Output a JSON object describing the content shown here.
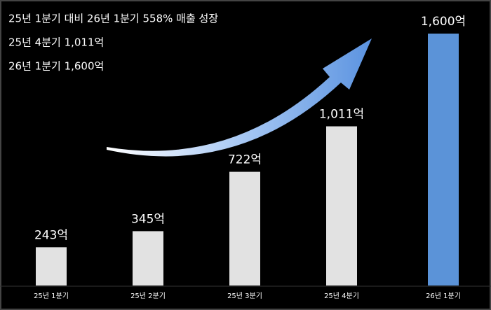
{
  "chart_data": {
    "type": "bar",
    "annotations": [
      "25년 1분기 대비 26년 1분기 558% 매출 성장",
      "25년 4분기 1,011억",
      "26년 1분기 1,600억"
    ],
    "categories": [
      "25년 1분기",
      "25년 2분기",
      "25년 3분기",
      "25년 4분기",
      "26년 1분기"
    ],
    "values": [
      243,
      345,
      722,
      1011,
      1600
    ],
    "value_labels": [
      "243억",
      "345억",
      "722억",
      "1,011억",
      "1,600억"
    ],
    "colors": [
      "#e2e2e2",
      "#e2e2e2",
      "#e2e2e2",
      "#e2e2e2",
      "#5b93d8"
    ]
  }
}
